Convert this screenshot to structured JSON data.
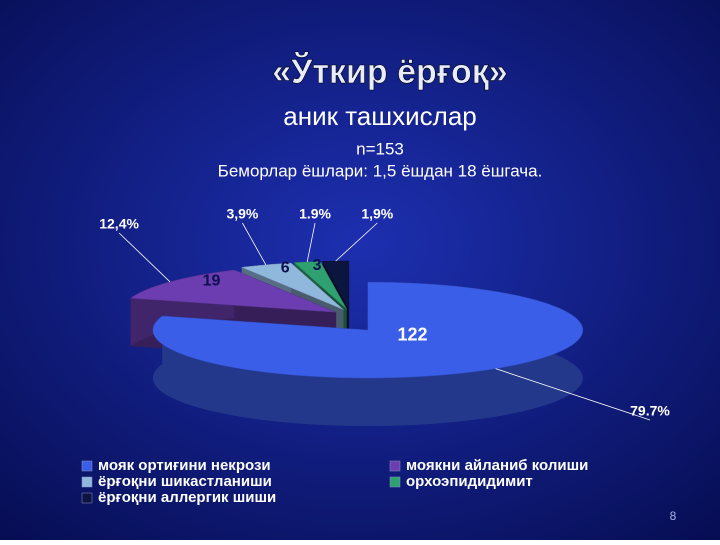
{
  "chart_data": {
    "type": "pie3d",
    "title": "«Ўткир ёрғоқ»",
    "subtitle": "аник ташхислар",
    "sample": "n=153",
    "age_note": "Беморлар ёшлари:  1,5 ёшдан 18 ёшгача.",
    "series": [
      {
        "name": "мояк ортиғини некрози",
        "color": "#3a5ee8",
        "value": 122,
        "percent": 79.7,
        "percent_label": "79.7%"
      },
      {
        "name": "моякни айланиб колиши",
        "color": "#6b3db0",
        "value": 19,
        "percent": 12.4,
        "percent_label": "12,4%"
      },
      {
        "name": "ёрғоқни шикастланиши",
        "color": "#8fb8dc",
        "value": 6,
        "percent": 3.9,
        "percent_label": "3,9%"
      },
      {
        "name": "орхоэпидидимит",
        "color": "#2fa070",
        "value": 3,
        "percent": 1.9,
        "percent_label": "1.9%"
      },
      {
        "name": "ёрғоқни аллергик шиши",
        "color": "#0c1440",
        "value": 3,
        "percent": 1.9,
        "percent_label": "1,9%",
        "value_hidden": true
      }
    ],
    "page_number": "8"
  }
}
